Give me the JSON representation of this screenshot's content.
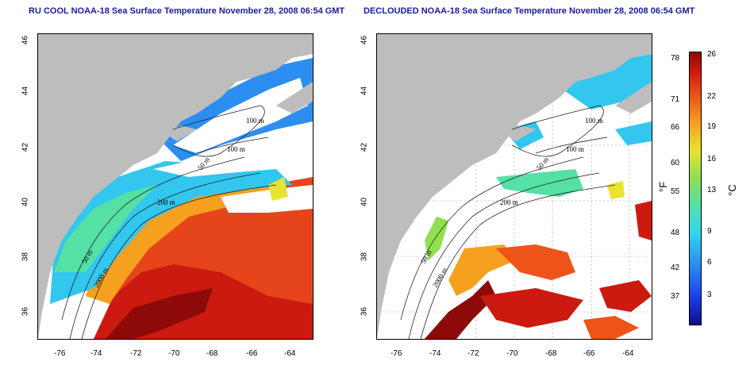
{
  "left_panel": {
    "title": "RU COOL NOAA-18 Sea Surface Temperature November 28, 2008 06:54 GMT"
  },
  "right_panel": {
    "title": "DECLOUDED NOAA-18 Sea Surface Temperature November 28, 2008 06:54 GMT"
  },
  "axes": {
    "lon_ticks": [
      "-76",
      "-74",
      "-72",
      "-70",
      "-68",
      "-66",
      "-64"
    ],
    "lat_ticks": [
      "46",
      "44",
      "42",
      "40",
      "38",
      "36"
    ]
  },
  "contours": {
    "labels_left": [
      "100 m",
      "100 m",
      "50 m",
      "200 m",
      "50 m",
      "2000 m"
    ],
    "labels_right": [
      "100 m",
      "100 m",
      "50 m",
      "200 m",
      "50 m",
      "2000 m"
    ]
  },
  "colorbar": {
    "fahrenheit_ticks": [
      "78",
      "71",
      "66",
      "60",
      "55",
      "48",
      "42",
      "37"
    ],
    "celsius_ticks": [
      "26",
      "22",
      "19",
      "16",
      "13",
      "9",
      "6",
      "3"
    ],
    "unit_f": "°F",
    "unit_c": "°C",
    "colors": {
      "cold": "#0d0d8a",
      "cool": "#2b8ef0",
      "mild": "#55e0a6",
      "warm": "#e8e330",
      "hot": "#cc1a10"
    }
  },
  "colors": {
    "land": "#bdbdbd",
    "cloud": "#ffffff",
    "contour": "#222222",
    "title": "#1a1aa0"
  }
}
